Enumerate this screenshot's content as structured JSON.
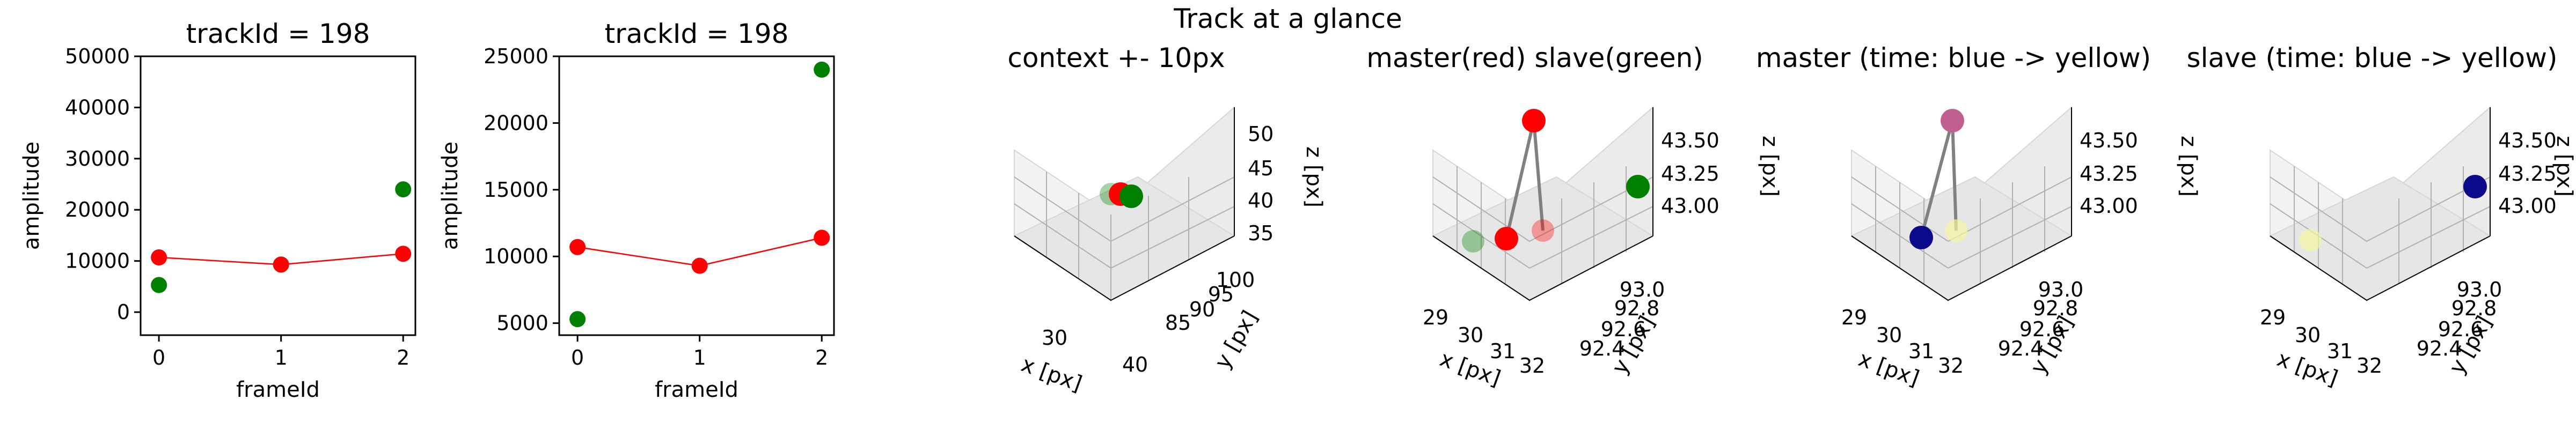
{
  "figure": {
    "suptitle": "Track at a glance"
  },
  "chart_data": [
    {
      "type": "scatter",
      "title": "trackId = 198",
      "xlabel": "frameId",
      "ylabel": "amplitude",
      "xlim": [
        -0.15,
        2.1
      ],
      "ylim": [
        -4500,
        50000
      ],
      "xticks": [
        0,
        1,
        2
      ],
      "yticks": [
        0,
        10000,
        20000,
        30000,
        40000,
        50000
      ],
      "series": [
        {
          "color": "#ff0000",
          "line": true,
          "x": [
            0,
            1,
            2
          ],
          "y": [
            10700,
            9300,
            11400
          ]
        },
        {
          "color": "#008000",
          "line": false,
          "x": [
            0,
            2
          ],
          "y": [
            5300,
            24000
          ]
        }
      ]
    },
    {
      "type": "scatter",
      "title": "trackId = 198",
      "xlabel": "frameId",
      "ylabel": "amplitude",
      "xlim": [
        -0.15,
        2.1
      ],
      "ylim": [
        4100,
        25000
      ],
      "xticks": [
        0,
        1,
        2
      ],
      "yticks": [
        5000,
        10000,
        15000,
        20000,
        25000
      ],
      "series": [
        {
          "color": "#ff0000",
          "line": true,
          "x": [
            0,
            1,
            2
          ],
          "y": [
            10700,
            9300,
            11400
          ]
        },
        {
          "color": "#008000",
          "line": false,
          "x": [
            0,
            2
          ],
          "y": [
            5300,
            24000
          ]
        }
      ]
    },
    {
      "type": "scatter3d",
      "title": "context +- 10px",
      "xlabel": "x [px]",
      "ylabel": "y [px]",
      "zlabel": "z [px]",
      "xticks": [
        "30",
        "40"
      ],
      "yticks": [
        "85",
        "90",
        "95",
        "100"
      ],
      "zticks": [
        "35",
        "40",
        "45",
        "50"
      ]
    },
    {
      "type": "scatter3d",
      "title": "master(red) slave(green)",
      "xlabel": "x [px]",
      "ylabel": "y [px]",
      "zlabel": "z [px]",
      "xticks": [
        "29",
        "30",
        "31",
        "32"
      ],
      "yticks": [
        "92.4",
        "92.6",
        "92.8",
        "93.0"
      ],
      "zticks": [
        "43.00",
        "43.25",
        "43.50"
      ]
    },
    {
      "type": "scatter3d",
      "title": "master (time: blue -> yellow)",
      "xlabel": "x [px]",
      "ylabel": "y [px]",
      "zlabel": "z [px]",
      "xticks": [
        "29",
        "30",
        "31",
        "32"
      ],
      "yticks": [
        "92.4",
        "92.6",
        "92.8",
        "93.0"
      ],
      "zticks": [
        "43.00",
        "43.25",
        "43.50"
      ]
    },
    {
      "type": "scatter3d",
      "title": "slave (time: blue -> yellow)",
      "xlabel": "x [px]",
      "ylabel": "y [px]",
      "zlabel": "z [px]",
      "xticks": [
        "29",
        "30",
        "31",
        "32"
      ],
      "yticks": [
        "92.4",
        "92.6",
        "92.8",
        "93.0"
      ],
      "zticks": [
        "43.00",
        "43.25",
        "43.50"
      ]
    }
  ]
}
